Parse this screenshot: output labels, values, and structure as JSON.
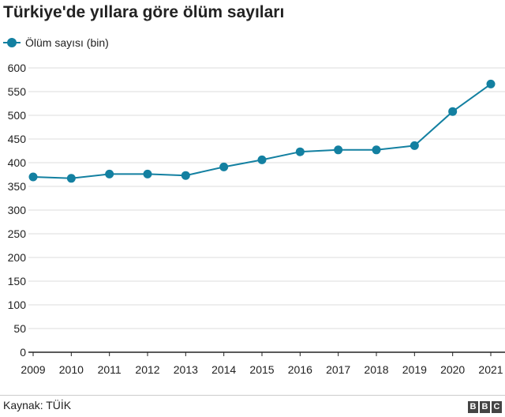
{
  "title": "Türkiye'de yıllara göre ölüm sayıları",
  "source": "Kaynak: TÜİK",
  "logo": [
    "B",
    "B",
    "C"
  ],
  "colors": {
    "series": "#1380A1",
    "grid": "#dddddd",
    "axis": "#222222",
    "text": "#222222"
  },
  "chart_data": {
    "type": "line",
    "title": "Türkiye'de yıllara göre ölüm sayıları",
    "xlabel": "",
    "ylabel": "",
    "x": [
      2009,
      2010,
      2011,
      2012,
      2013,
      2014,
      2015,
      2016,
      2017,
      2018,
      2019,
      2020,
      2021
    ],
    "series": [
      {
        "name": "Ölüm sayısı (bin)",
        "color": "#1380A1",
        "values": [
          370,
          367,
          376,
          376,
          373,
          391,
          406,
          423,
          427,
          427,
          436,
          508,
          566
        ]
      }
    ],
    "ylim": [
      0,
      600
    ],
    "yticks": [
      0,
      50,
      100,
      150,
      200,
      250,
      300,
      350,
      400,
      450,
      500,
      550,
      600
    ],
    "grid": "horizontal",
    "legend": "top-left"
  }
}
